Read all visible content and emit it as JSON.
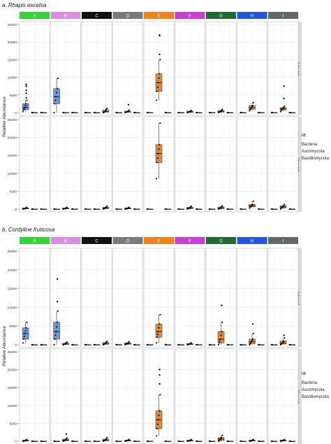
{
  "figure": {
    "box_colors": {
      "Bacteria": "#5b8fd6",
      "Ascomycota": "#e07b26",
      "Basidiomycota": "#d9a04a"
    },
    "panel_colors": {
      "A": "#38d138",
      "B": "#d98fe0",
      "C": "#111111",
      "D": "#7a7a7a",
      "E": "#f0821e",
      "F": "#c63fd6",
      "G": "#1f6b32",
      "H": "#2456d9",
      "I": "#5f6a66"
    }
  },
  "chart_data": [
    {
      "type": "boxplot",
      "title": "a. Rhapis excelsa",
      "ylabel": "Relative Abundance",
      "ylim": [
        0,
        25000
      ],
      "yticks": [
        "0",
        "5000",
        "10000",
        "15000",
        "20000",
        "25000"
      ],
      "panels": [
        "A",
        "B",
        "C",
        "D",
        "E",
        "F",
        "G",
        "H",
        "I"
      ],
      "rows": [
        "Adaxial",
        "Abaxial"
      ],
      "legend": {
        "title": "Taxa",
        "entries": [
          "Bacteria",
          "Ascomycota",
          "Basidiomycota"
        ]
      },
      "grid": true,
      "data": {
        "Adaxial": {
          "A": [
            [
              300,
              800,
              1500,
              2500,
              3500
            ],
            [
              0,
              0,
              0,
              0,
              0
            ],
            [
              0,
              0,
              0,
              0,
              0
            ]
          ],
          "B": [
            [
              0,
              2500,
              4500,
              6800,
              9700
            ],
            [
              0,
              0,
              0,
              0,
              0
            ],
            [
              0,
              0,
              0,
              0,
              0
            ]
          ],
          "C": [
            [
              0,
              0,
              0,
              0,
              0
            ],
            [
              0,
              0,
              0,
              0,
              0
            ],
            [
              0,
              100,
              300,
              800,
              1200
            ]
          ],
          "D": [
            [
              0,
              0,
              0,
              0,
              0
            ],
            [
              0,
              100,
              200,
              400,
              700
            ],
            [
              0,
              0,
              0,
              0,
              0
            ]
          ],
          "E": [
            [
              0,
              0,
              0,
              0,
              0
            ],
            [
              3500,
              6000,
              8500,
              11000,
              15000
            ],
            [
              0,
              0,
              0,
              0,
              0
            ]
          ],
          "F": [
            [
              0,
              0,
              0,
              0,
              0
            ],
            [
              0,
              50,
              200,
              400,
              600
            ],
            [
              0,
              0,
              0,
              0,
              0
            ]
          ],
          "G": [
            [
              0,
              0,
              0,
              0,
              0
            ],
            [
              0,
              100,
              300,
              600,
              900
            ],
            [
              0,
              0,
              0,
              0,
              0
            ]
          ],
          "H": [
            [
              0,
              0,
              0,
              0,
              0
            ],
            [
              500,
              900,
              1400,
              2000,
              2800
            ],
            [
              0,
              0,
              0,
              0,
              0
            ]
          ],
          "I": [
            [
              0,
              0,
              0,
              0,
              0
            ],
            [
              300,
              700,
              1100,
              1400,
              1800
            ],
            [
              0,
              0,
              0,
              0,
              0
            ]
          ]
        },
        "Abaxial": {
          "A": [
            [
              0,
              50,
              150,
              300,
              500
            ],
            [
              0,
              0,
              0,
              0,
              0
            ],
            [
              0,
              0,
              0,
              0,
              0
            ]
          ],
          "B": [
            [
              0,
              0,
              0,
              0,
              0
            ],
            [
              0,
              50,
              150,
              300,
              500
            ],
            [
              0,
              0,
              0,
              0,
              0
            ]
          ],
          "C": [
            [
              0,
              0,
              0,
              0,
              0
            ],
            [
              0,
              0,
              0,
              0,
              0
            ],
            [
              0,
              100,
              300,
              500,
              800
            ]
          ],
          "D": [
            [
              0,
              0,
              0,
              0,
              0
            ],
            [
              0,
              50,
              150,
              300,
              500
            ],
            [
              0,
              0,
              0,
              0,
              0
            ]
          ],
          "E": [
            [
              0,
              0,
              0,
              0,
              0
            ],
            [
              8500,
              13000,
              15500,
              18000,
              24000
            ],
            [
              0,
              0,
              0,
              0,
              0
            ]
          ],
          "F": [
            [
              0,
              0,
              0,
              0,
              0
            ],
            [
              0,
              100,
              300,
              500,
              800
            ],
            [
              0,
              0,
              0,
              0,
              0
            ]
          ],
          "G": [
            [
              0,
              0,
              0,
              0,
              0
            ],
            [
              0,
              100,
              300,
              600,
              900
            ],
            [
              0,
              0,
              0,
              0,
              0
            ]
          ],
          "H": [
            [
              0,
              0,
              0,
              0,
              0
            ],
            [
              300,
              600,
              900,
              1300,
              2200
            ],
            [
              0,
              0,
              0,
              0,
              0
            ]
          ],
          "I": [
            [
              0,
              0,
              0,
              0,
              0
            ],
            [
              0,
              300,
              600,
              900,
              1300
            ],
            [
              0,
              0,
              0,
              0,
              0
            ]
          ]
        }
      },
      "outliers": {
        "Adaxial": {
          "A": [
            [
              4200,
              5500,
              6300,
              7500,
              8000
            ],
            [],
            []
          ],
          "B": [
            [],
            [],
            []
          ],
          "C": [
            [],
            [],
            []
          ],
          "D": [
            [],
            [
              2200
            ],
            []
          ],
          "E": [
            [],
            [
              16500,
              21800,
              22000
            ],
            []
          ],
          "F": [
            [],
            [],
            []
          ],
          "G": [
            [],
            [],
            []
          ],
          "H": [
            [],
            [],
            []
          ],
          "I": [
            [],
            [
              4000,
              7500
            ],
            []
          ]
        },
        "Abaxial": {
          "A": [
            [],
            [],
            []
          ],
          "B": [
            [],
            [],
            []
          ],
          "C": [
            [],
            [],
            []
          ],
          "D": [
            [],
            [],
            []
          ],
          "E": [
            [],
            [],
            []
          ],
          "F": [
            [],
            [],
            []
          ],
          "G": [
            [],
            [],
            []
          ],
          "H": [
            [],
            [],
            []
          ],
          "I": [
            [],
            [],
            []
          ]
        }
      }
    },
    {
      "type": "boxplot",
      "title": "b. Cordyline fruticosa",
      "ylabel": "Relative Abundance",
      "ylim": [
        0,
        25000
      ],
      "yticks": [
        "0",
        "5000",
        "10000",
        "15000",
        "20000",
        "25000"
      ],
      "panels": [
        "A",
        "B",
        "C",
        "D",
        "E",
        "F",
        "G",
        "H",
        "I"
      ],
      "rows": [
        "Adaxial",
        "Abaxial"
      ],
      "legend": {
        "title": "Taxa",
        "entries": [
          "Bacteria",
          "Ascomycota",
          "Basidiomycota"
        ]
      },
      "grid": true,
      "data": {
        "Adaxial": {
          "A": [
            [
              500,
              1500,
              3000,
              4500,
              6000
            ],
            [
              0,
              0,
              0,
              0,
              0
            ],
            [
              0,
              0,
              0,
              0,
              0
            ]
          ],
          "B": [
            [
              0,
              1500,
              3500,
              6000,
              9000
            ],
            [
              0,
              50,
              200,
              400,
              700
            ],
            [
              0,
              0,
              0,
              0,
              0
            ]
          ],
          "C": [
            [
              0,
              0,
              0,
              0,
              0
            ],
            [
              0,
              0,
              0,
              0,
              0
            ],
            [
              0,
              100,
              300,
              600,
              900
            ]
          ],
          "D": [
            [
              0,
              0,
              0,
              0,
              0
            ],
            [
              0,
              100,
              300,
              500,
              800
            ],
            [
              0,
              0,
              0,
              0,
              0
            ]
          ],
          "E": [
            [
              0,
              0,
              0,
              0,
              0
            ],
            [
              500,
              2000,
              3500,
              5500,
              8000
            ],
            [
              0,
              0,
              0,
              0,
              0
            ]
          ],
          "F": [
            [
              0,
              0,
              0,
              0,
              0
            ],
            [
              0,
              50,
              150,
              300,
              500
            ],
            [
              0,
              0,
              0,
              0,
              0
            ]
          ],
          "G": [
            [
              0,
              0,
              0,
              0,
              0
            ],
            [
              0,
              500,
              1500,
              3500,
              6000
            ],
            [
              0,
              0,
              0,
              0,
              0
            ]
          ],
          "H": [
            [
              0,
              0,
              0,
              0,
              0
            ],
            [
              0,
              300,
              800,
              1500,
              3000
            ],
            [
              0,
              0,
              0,
              0,
              0
            ]
          ],
          "I": [
            [
              0,
              0,
              0,
              0,
              0
            ],
            [
              0,
              200,
              500,
              1000,
              1800
            ],
            [
              0,
              0,
              0,
              0,
              0
            ]
          ]
        },
        "Abaxial": {
          "A": [
            [
              0,
              50,
              150,
              300,
              500
            ],
            [
              0,
              0,
              0,
              0,
              0
            ],
            [
              0,
              0,
              0,
              0,
              0
            ]
          ],
          "B": [
            [
              0,
              0,
              0,
              0,
              0
            ],
            [
              0,
              100,
              300,
              600,
              900
            ],
            [
              0,
              0,
              0,
              0,
              0
            ]
          ],
          "C": [
            [
              0,
              0,
              0,
              0,
              0
            ],
            [
              0,
              0,
              0,
              0,
              0
            ],
            [
              0,
              100,
              300,
              600,
              1000
            ]
          ],
          "D": [
            [
              0,
              0,
              0,
              0,
              0
            ],
            [
              0,
              50,
              150,
              300,
              500
            ],
            [
              0,
              0,
              0,
              0,
              0
            ]
          ],
          "E": [
            [
              0,
              0,
              0,
              0,
              0
            ],
            [
              1500,
              3500,
              6000,
              8500,
              13000
            ],
            [
              0,
              0,
              0,
              0,
              0
            ]
          ],
          "F": [
            [
              0,
              0,
              0,
              0,
              0
            ],
            [
              0,
              50,
              150,
              300,
              500
            ],
            [
              0,
              0,
              0,
              0,
              0
            ]
          ],
          "G": [
            [
              0,
              0,
              0,
              0,
              0
            ],
            [
              0,
              200,
              600,
              1000,
              1600
            ],
            [
              0,
              0,
              0,
              0,
              0
            ]
          ],
          "H": [
            [
              0,
              0,
              0,
              0,
              0
            ],
            [
              0,
              50,
              150,
              300,
              500
            ],
            [
              0,
              0,
              0,
              0,
              0
            ]
          ],
          "I": [
            [
              0,
              0,
              0,
              0,
              0
            ],
            [
              0,
              50,
              150,
              300,
              500
            ],
            [
              0,
              0,
              0,
              0,
              0
            ]
          ]
        }
      },
      "outliers": {
        "Adaxial": {
          "A": [
            [],
            [],
            []
          ],
          "B": [
            [
              11500,
              17500
            ],
            [],
            []
          ],
          "C": [
            [],
            [],
            []
          ],
          "D": [
            [],
            [],
            []
          ],
          "E": [
            [],
            [],
            []
          ],
          "F": [
            [],
            [],
            []
          ],
          "G": [
            [],
            [
              10500
            ],
            []
          ],
          "H": [
            [],
            [
              5500
            ],
            []
          ],
          "I": [
            [],
            [
              2500
            ],
            []
          ]
        },
        "Abaxial": {
          "A": [
            [],
            [],
            []
          ],
          "B": [
            [],
            [
              2000
            ],
            []
          ],
          "C": [
            [],
            [],
            []
          ],
          "D": [
            [],
            [],
            []
          ],
          "E": [
            [],
            [
              16000,
              18500,
              20000
            ],
            []
          ],
          "F": [
            [],
            [],
            []
          ],
          "G": [
            [],
            [],
            []
          ],
          "H": [
            [],
            [],
            []
          ],
          "I": [
            [],
            [],
            []
          ]
        }
      }
    }
  ]
}
